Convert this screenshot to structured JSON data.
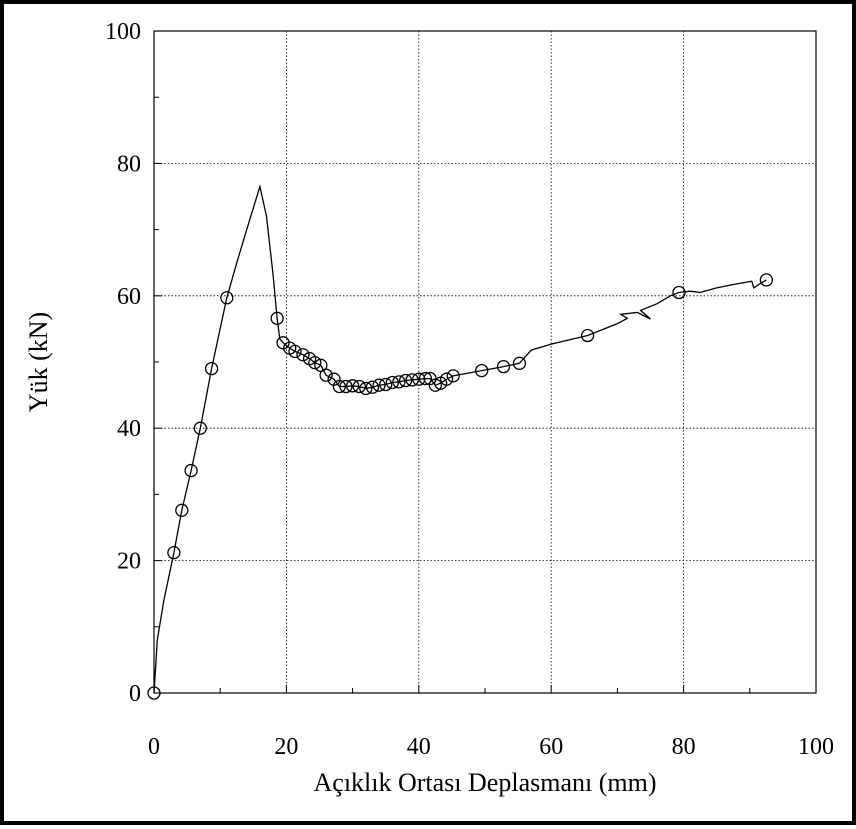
{
  "chart_data": {
    "type": "scatter",
    "title": "",
    "xlabel": "Açıklık Ortası Deplasmanı (mm)",
    "ylabel": "Yük (kN)",
    "xlim": [
      0,
      100
    ],
    "ylim": [
      0,
      100
    ],
    "x_ticks": [
      "0",
      "20",
      "40",
      "60",
      "80",
      "100"
    ],
    "y_ticks": [
      "0",
      "20",
      "40",
      "60",
      "80",
      "100"
    ],
    "grid": true,
    "grid_style": "dotted",
    "colors": {
      "line": "#000000",
      "marker_edge": "#000000",
      "marker_fill": "none"
    },
    "series": [
      {
        "curve": [
          [
            0,
            0
          ],
          [
            0.5,
            8
          ],
          [
            1.5,
            14
          ],
          [
            3,
            21.2
          ],
          [
            4.2,
            27.6
          ],
          [
            5.6,
            33.6
          ],
          [
            7,
            40
          ],
          [
            8.7,
            49
          ],
          [
            11,
            59.7
          ],
          [
            12.5,
            65
          ],
          [
            14,
            70
          ],
          [
            16,
            76.5
          ],
          [
            17,
            72
          ],
          [
            18,
            63
          ],
          [
            18.6,
            56.6
          ],
          [
            19,
            53.5
          ],
          [
            19.5,
            52.9
          ],
          [
            20.5,
            52.1
          ],
          [
            21.3,
            51.6
          ],
          [
            22.5,
            51.1
          ],
          [
            23.5,
            50.5
          ],
          [
            24.3,
            49.9
          ],
          [
            25.2,
            49.5
          ],
          [
            26,
            48
          ],
          [
            27.2,
            47.4
          ],
          [
            28,
            46.3
          ],
          [
            29,
            46.3
          ],
          [
            30,
            46.4
          ],
          [
            31,
            46.3
          ],
          [
            32,
            46
          ],
          [
            33,
            46.2
          ],
          [
            34,
            46.5
          ],
          [
            35,
            46.6
          ],
          [
            36,
            46.9
          ],
          [
            37,
            47
          ],
          [
            38,
            47.2
          ],
          [
            39,
            47.3
          ],
          [
            40,
            47.4
          ],
          [
            41,
            47.5
          ],
          [
            41.7,
            47.5
          ],
          [
            42.5,
            46.5
          ],
          [
            43.3,
            46.8
          ],
          [
            44.2,
            47.4
          ],
          [
            45.2,
            47.9
          ],
          [
            49.5,
            48.7
          ],
          [
            52.8,
            49.3
          ],
          [
            55.2,
            49.8
          ],
          [
            57,
            51.8
          ],
          [
            60,
            52.7
          ],
          [
            65.5,
            54
          ],
          [
            68,
            55
          ],
          [
            70,
            55.8
          ],
          [
            71.5,
            56.6
          ],
          [
            70.5,
            57.2
          ],
          [
            73,
            57.5
          ],
          [
            75,
            56.5
          ],
          [
            73.5,
            57.8
          ],
          [
            76,
            58.8
          ],
          [
            78,
            60
          ],
          [
            79.3,
            60.5
          ],
          [
            81,
            60.7
          ],
          [
            82.5,
            60.5
          ],
          [
            85,
            61.2
          ],
          [
            88,
            61.8
          ],
          [
            90.3,
            62.2
          ],
          [
            90.6,
            61.2
          ],
          [
            91.2,
            61.6
          ],
          [
            92.5,
            62.4
          ]
        ],
        "markers": [
          [
            0,
            0
          ],
          [
            3,
            21.2
          ],
          [
            4.2,
            27.6
          ],
          [
            5.6,
            33.6
          ],
          [
            7,
            40
          ],
          [
            8.7,
            49
          ],
          [
            11,
            59.7
          ],
          [
            18.6,
            56.6
          ],
          [
            19.5,
            52.9
          ],
          [
            20.5,
            52.1
          ],
          [
            21.3,
            51.6
          ],
          [
            22.5,
            51.1
          ],
          [
            23.5,
            50.5
          ],
          [
            24.3,
            49.9
          ],
          [
            25.2,
            49.5
          ],
          [
            26,
            48
          ],
          [
            27.2,
            47.4
          ],
          [
            28,
            46.3
          ],
          [
            29,
            46.3
          ],
          [
            30,
            46.4
          ],
          [
            31,
            46.3
          ],
          [
            32,
            46
          ],
          [
            33,
            46.2
          ],
          [
            34,
            46.5
          ],
          [
            35,
            46.6
          ],
          [
            36,
            46.9
          ],
          [
            37,
            47
          ],
          [
            38,
            47.2
          ],
          [
            39,
            47.3
          ],
          [
            40,
            47.4
          ],
          [
            41,
            47.5
          ],
          [
            41.7,
            47.5
          ],
          [
            42.5,
            46.5
          ],
          [
            43.3,
            46.8
          ],
          [
            44.2,
            47.4
          ],
          [
            45.2,
            47.9
          ],
          [
            49.5,
            48.7
          ],
          [
            52.8,
            49.3
          ],
          [
            55.2,
            49.8
          ],
          [
            65.5,
            54
          ],
          [
            79.3,
            60.5
          ],
          [
            92.5,
            62.4
          ]
        ]
      }
    ]
  }
}
